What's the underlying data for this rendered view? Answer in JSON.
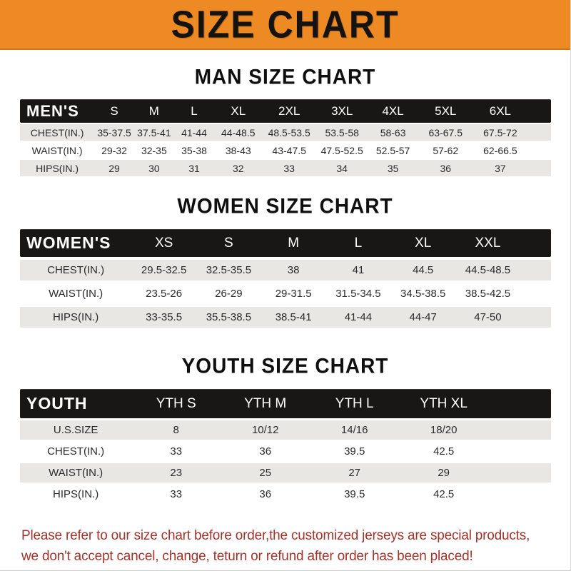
{
  "banner": {
    "title": "SIZE CHART",
    "bg_color": "#EE8A23",
    "text_color": "#151310"
  },
  "footer_note": {
    "color": "#A0342B",
    "lines": [
      "Please refer to our size chart before order,the customized jerseys are special products,",
      "we don't accept cancel, change, teturn or refund after order has been placed!"
    ]
  },
  "chart_data": [
    {
      "type": "table",
      "title": "MAN SIZE CHART",
      "corner_label": "MEN'S",
      "columns": [
        "S",
        "M",
        "L",
        "XL",
        "2XL",
        "3XL",
        "4XL",
        "5XL",
        "6XL"
      ],
      "rows": [
        {
          "label": "CHEST(IN.)",
          "values": [
            "35-37.5",
            "37.5-41",
            "41-44",
            "44-48.5",
            "48.5-53.5",
            "53.5-58",
            "58-63",
            "63-67.5",
            "67.5-72"
          ]
        },
        {
          "label": "WAIST(IN.)",
          "values": [
            "29-32",
            "32-35",
            "35-38",
            "38-43",
            "43-47.5",
            "47.5-52.5",
            "52.5-57",
            "57-62",
            "62-66.5"
          ]
        },
        {
          "label": "HIPS(IN.)",
          "values": [
            "29",
            "30",
            "31",
            "32",
            "33",
            "34",
            "35",
            "36",
            "37"
          ]
        }
      ]
    },
    {
      "type": "table",
      "title": "WOMEN SIZE CHART",
      "corner_label": "WOMEN'S",
      "columns": [
        "XS",
        "S",
        "M",
        "L",
        "XL",
        "XXL"
      ],
      "rows": [
        {
          "label": "CHEST(IN.)",
          "values": [
            "29.5-32.5",
            "32.5-35.5",
            "38",
            "41",
            "44.5",
            "44.5-48.5"
          ]
        },
        {
          "label": "WAIST(IN.)",
          "values": [
            "23.5-26",
            "26-29",
            "29-31.5",
            "31.5-34.5",
            "34.5-38.5",
            "38.5-42.5"
          ]
        },
        {
          "label": "HIPS(IN.)",
          "values": [
            "33-35.5",
            "35.5-38.5",
            "38.5-41",
            "41-44",
            "44-47",
            "47-50"
          ]
        }
      ]
    },
    {
      "type": "table",
      "title": "YOUTH SIZE CHART",
      "corner_label": "YOUTH",
      "columns": [
        "YTH S",
        "YTH M",
        "YTH L",
        "YTH XL"
      ],
      "rows": [
        {
          "label": "U.S.SIZE",
          "values": [
            "8",
            "10/12",
            "14/16",
            "18/20"
          ]
        },
        {
          "label": "CHEST(IN.)",
          "values": [
            "33",
            "36",
            "39.5",
            "42.5"
          ]
        },
        {
          "label": "WAIST(IN.)",
          "values": [
            "23",
            "25",
            "27",
            "29"
          ]
        },
        {
          "label": "HIPS(IN.)",
          "values": [
            "33",
            "36",
            "39.5",
            "42.5"
          ]
        }
      ]
    }
  ]
}
